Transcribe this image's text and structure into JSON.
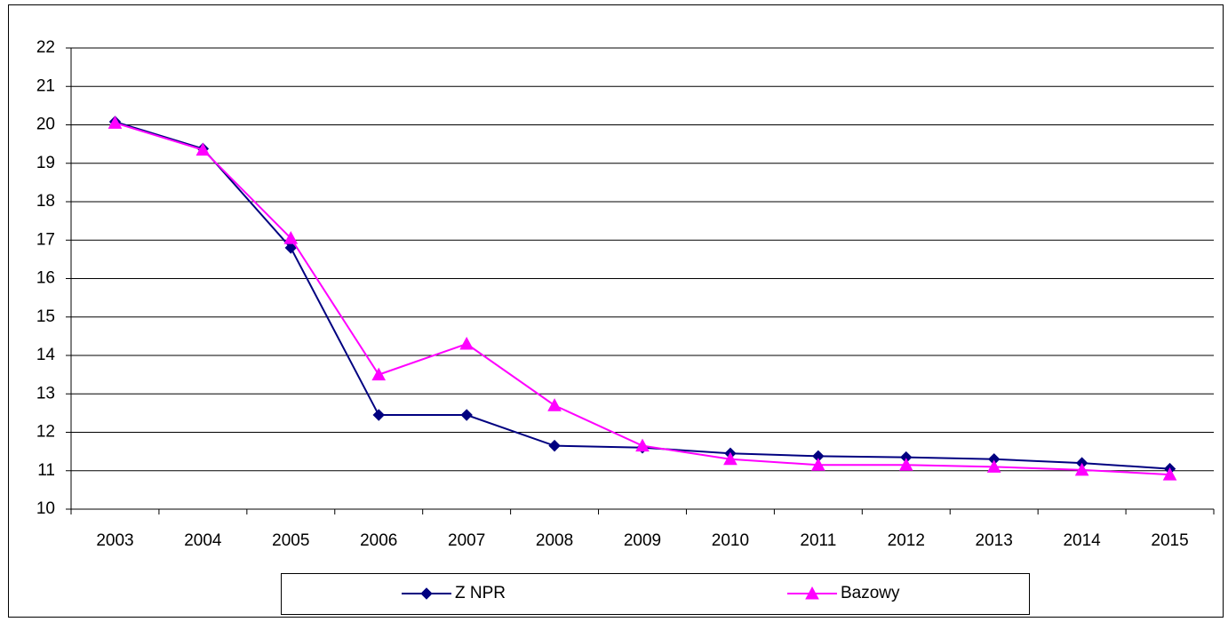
{
  "chart_data": {
    "type": "line",
    "categories": [
      "2003",
      "2004",
      "2005",
      "2006",
      "2007",
      "2008",
      "2009",
      "2010",
      "2011",
      "2012",
      "2013",
      "2014",
      "2015"
    ],
    "series": [
      {
        "name": "Z NPR",
        "color": "#000080",
        "marker": "diamond",
        "values": [
          20.08,
          19.38,
          16.8,
          12.45,
          12.45,
          11.65,
          11.6,
          11.45,
          11.38,
          11.35,
          11.3,
          11.2,
          11.05
        ]
      },
      {
        "name": "Bazowy",
        "color": "#ff00ff",
        "marker": "triangle",
        "values": [
          20.05,
          19.35,
          17.05,
          13.5,
          14.3,
          12.7,
          11.65,
          11.3,
          11.15,
          11.15,
          11.1,
          11.02,
          10.9
        ]
      }
    ],
    "ylim": [
      10,
      22
    ],
    "yticks": [
      10,
      11,
      12,
      13,
      14,
      15,
      16,
      17,
      18,
      19,
      20,
      21,
      22
    ],
    "grid": true,
    "legend": "bottom"
  }
}
